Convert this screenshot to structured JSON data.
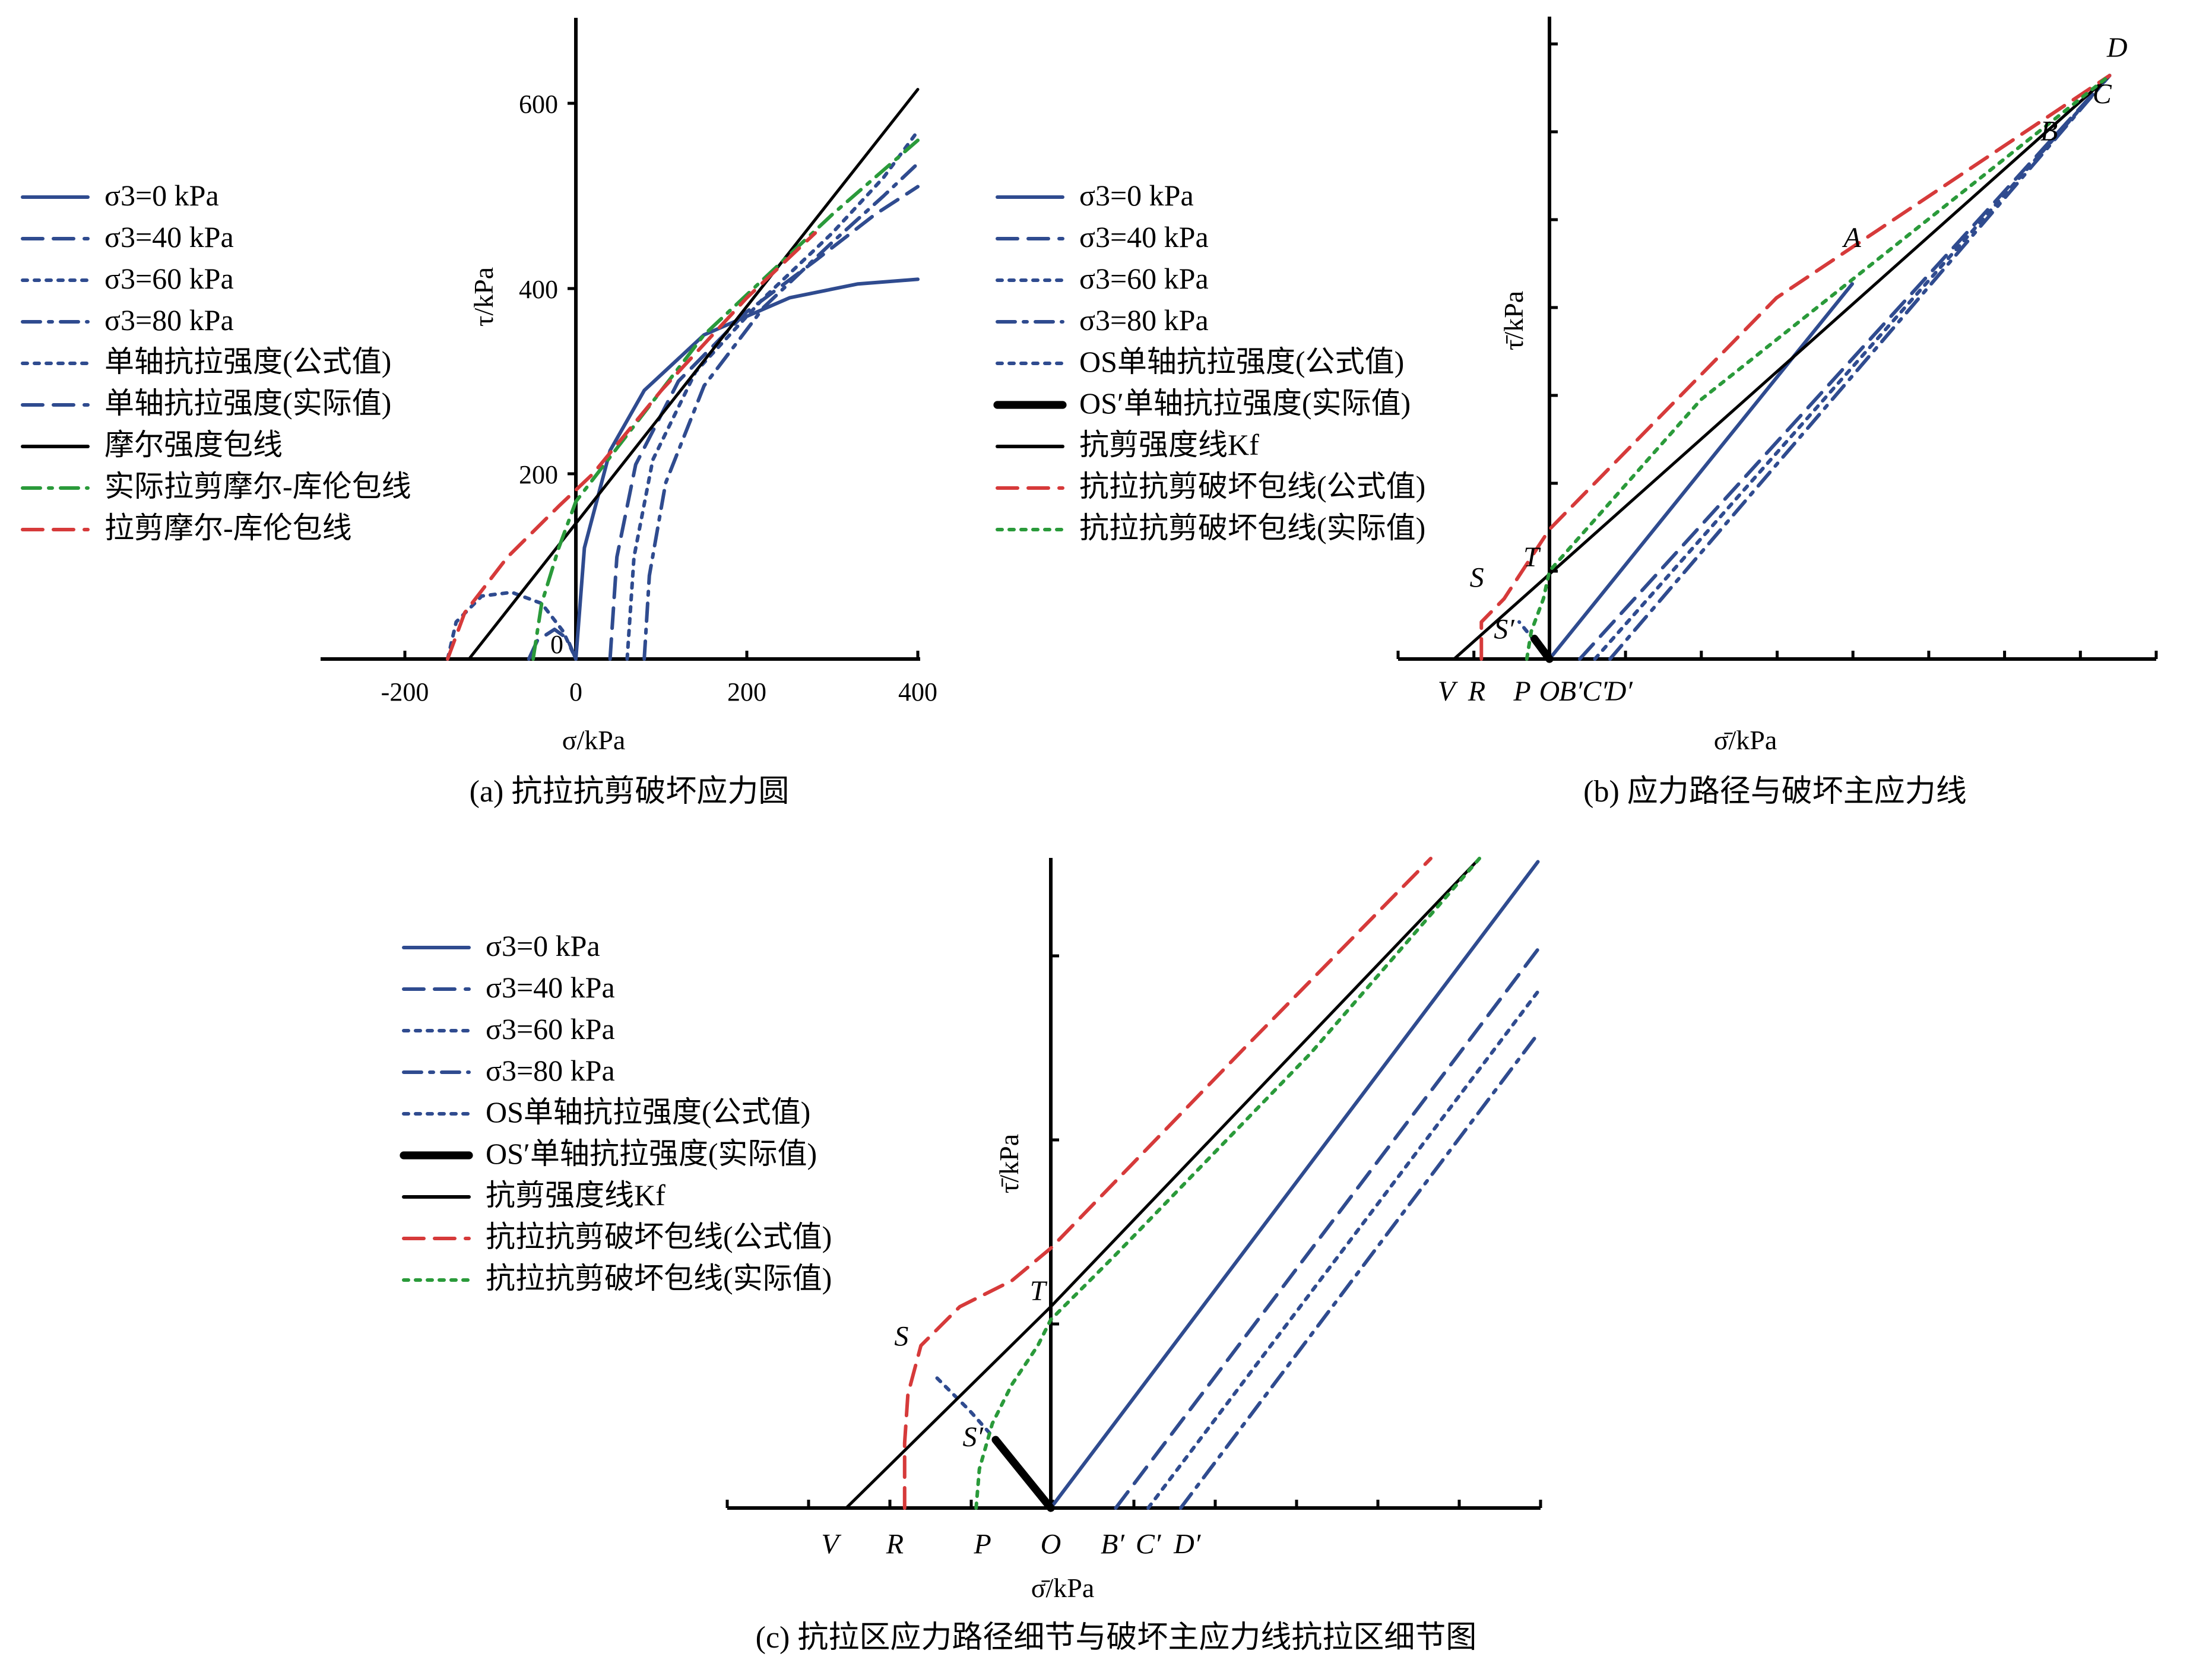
{
  "chart_data": [
    {
      "panel": "a",
      "type": "line",
      "caption": "(a) 抗拉抗剪破坏应力圆",
      "xlabel": "σ/kPa",
      "ylabel": "τ/kPa",
      "xlim": [
        -280,
        400
      ],
      "ylim": [
        0,
        700
      ],
      "xticks": [
        -200,
        0,
        200,
        400
      ],
      "xtick_labels": [
        "-200",
        "0",
        "200",
        "400"
      ],
      "yticks": [
        200,
        400,
        600
      ],
      "ytick_labels": [
        "200",
        "400",
        "600"
      ],
      "origin_label": "0",
      "legend": [
        {
          "label": "σ3=0 kPa",
          "style": "solid",
          "color": "#2f4b8f"
        },
        {
          "label": "σ3=40 kPa",
          "style": "dash",
          "color": "#2f4b8f"
        },
        {
          "label": "σ3=60 kPa",
          "style": "dot",
          "color": "#2f4b8f"
        },
        {
          "label": "σ3=80 kPa",
          "style": "dashdot",
          "color": "#2f4b8f"
        },
        {
          "label": "单轴抗拉强度(公式值)",
          "style": "dot",
          "color": "#2f4b8f"
        },
        {
          "label": "单轴抗拉强度(实际值)",
          "style": "dash",
          "color": "#2f4b8f"
        },
        {
          "label": "摩尔强度包线",
          "style": "solid",
          "color": "#000000"
        },
        {
          "label": "实际拉剪摩尔-库伦包线",
          "style": "dashdot",
          "color": "#2a9a3a"
        },
        {
          "label": "拉剪摩尔-库伦包线",
          "style": "dash",
          "color": "#d63a3a"
        }
      ],
      "series": [
        {
          "name": "σ3=0 kPa",
          "style": "solid",
          "color": "#2f4b8f",
          "x": [
            0,
            10,
            40,
            80,
            150,
            250,
            330,
            400
          ],
          "y": [
            0,
            120,
            225,
            290,
            350,
            390,
            405,
            410
          ]
        },
        {
          "name": "σ3=40 kPa",
          "style": "dash",
          "color": "#2f4b8f",
          "x": [
            40,
            48,
            70,
            120,
            200,
            280,
            350,
            400
          ],
          "y": [
            0,
            110,
            210,
            300,
            375,
            430,
            480,
            510
          ]
        },
        {
          "name": "σ3=60 kPa",
          "style": "dot",
          "color": "#2f4b8f",
          "x": [
            60,
            68,
            90,
            140,
            220,
            300,
            360,
            400
          ],
          "y": [
            0,
            110,
            215,
            310,
            390,
            460,
            520,
            570
          ]
        },
        {
          "name": "σ3=80 kPa",
          "style": "dashdot",
          "color": "#2f4b8f",
          "x": [
            80,
            86,
            105,
            150,
            220,
            300,
            360,
            400
          ],
          "y": [
            0,
            90,
            190,
            295,
            380,
            450,
            500,
            535
          ]
        },
        {
          "name": "单轴抗拉强度(公式值)",
          "style": "dot",
          "color": "#2f4b8f",
          "x": [
            -150,
            -140,
            -110,
            -75,
            -40,
            -15,
            0
          ],
          "y": [
            0,
            40,
            68,
            72,
            60,
            30,
            0
          ]
        },
        {
          "name": "单轴抗拉强度(实际值)",
          "style": "dash",
          "color": "#2f4b8f",
          "x": [
            -55,
            -45,
            -25,
            -10,
            0
          ],
          "y": [
            0,
            20,
            32,
            22,
            0
          ]
        },
        {
          "name": "摩尔强度包线",
          "style": "solid",
          "color": "#000000",
          "x": [
            -125,
            400
          ],
          "y": [
            0,
            615
          ]
        },
        {
          "name": "实际拉剪摩尔-库伦包线",
          "style": "dashdot",
          "color": "#2a9a3a",
          "x": [
            -50,
            -40,
            -20,
            0,
            50,
            150,
            300,
            400
          ],
          "y": [
            0,
            60,
            120,
            170,
            230,
            350,
            480,
            560
          ]
        },
        {
          "name": "拉剪摩尔-库伦包线",
          "style": "dash",
          "color": "#d63a3a",
          "x": [
            -150,
            -130,
            -80,
            -20,
            20,
            100,
            200,
            280
          ],
          "y": [
            0,
            50,
            110,
            165,
            200,
            290,
            390,
            460
          ]
        }
      ]
    },
    {
      "panel": "b",
      "type": "line",
      "caption": "(b) 应力路径与破坏主应力线",
      "xlabel": "σ̄/kPa",
      "ylabel": "τ̄/kPa",
      "xlim": [
        -100,
        400
      ],
      "ylim": [
        0,
        700
      ],
      "point_labels": [
        "A",
        "B",
        "C",
        "D",
        "T",
        "S",
        "S′",
        "V",
        "R",
        "P",
        "O",
        "B′",
        "C′",
        "D′"
      ],
      "legend": [
        {
          "label": "σ3=0 kPa",
          "style": "solid",
          "color": "#2f4b8f"
        },
        {
          "label": "σ3=40 kPa",
          "style": "dash",
          "color": "#2f4b8f"
        },
        {
          "label": "σ3=60 kPa",
          "style": "dot",
          "color": "#2f4b8f"
        },
        {
          "label": "σ3=80 kPa",
          "style": "dashdot",
          "color": "#2f4b8f"
        },
        {
          "label": "OS单轴抗拉强度(公式值)",
          "style": "dot",
          "color": "#2f4b8f"
        },
        {
          "label": "OS′单轴抗拉强度(实际值)",
          "style": "solid-thick",
          "color": "#000000"
        },
        {
          "label": "抗剪强度线Kf",
          "style": "solid",
          "color": "#000000"
        },
        {
          "label": "抗拉抗剪破坏包线(公式值)",
          "style": "dash",
          "color": "#d63a3a"
        },
        {
          "label": "抗拉抗剪破坏包线(实际值)",
          "style": "dot",
          "color": "#2a9a3a"
        }
      ],
      "series": [
        {
          "name": "σ3=0 kPa",
          "style": "solid",
          "color": "#2f4b8f",
          "x": [
            0,
            200
          ],
          "y": [
            0,
            405
          ]
        },
        {
          "name": "σ3=40 kPa",
          "style": "dash",
          "color": "#2f4b8f",
          "x": [
            20,
            370
          ],
          "y": [
            0,
            630
          ]
        },
        {
          "name": "σ3=60 kPa",
          "style": "dot",
          "color": "#2f4b8f",
          "x": [
            30,
            370
          ],
          "y": [
            0,
            630
          ]
        },
        {
          "name": "σ3=80 kPa",
          "style": "dashdot",
          "color": "#2f4b8f",
          "x": [
            40,
            370
          ],
          "y": [
            0,
            630
          ]
        },
        {
          "name": "OS单轴抗拉强度(公式值)",
          "style": "dot",
          "color": "#2f4b8f",
          "x": [
            0,
            -20
          ],
          "y": [
            0,
            40
          ]
        },
        {
          "name": "OS′单轴抗拉强度(实际值)",
          "style": "solid-thick",
          "color": "#000000",
          "x": [
            0,
            -10
          ],
          "y": [
            0,
            22
          ]
        },
        {
          "name": "抗剪强度线Kf",
          "style": "solid",
          "color": "#000000",
          "x": [
            -63,
            370
          ],
          "y": [
            0,
            630
          ]
        },
        {
          "name": "抗拉抗剪破坏包线(公式值)",
          "style": "dash",
          "color": "#d63a3a",
          "x": [
            -45,
            -45,
            -30,
            0,
            150,
            370
          ],
          "y": [
            0,
            40,
            65,
            140,
            390,
            630
          ]
        },
        {
          "name": "抗拉抗剪破坏包线(实际值)",
          "style": "dot",
          "color": "#2a9a3a",
          "x": [
            -15,
            -12,
            -4,
            0,
            100,
            370
          ],
          "y": [
            0,
            30,
            65,
            95,
            280,
            630
          ]
        }
      ]
    },
    {
      "panel": "c",
      "type": "line",
      "caption": "(c) 抗拉区应力路径细节与破坏主应力线抗拉区细节图",
      "xlabel": "σ̄/kPa",
      "ylabel": "τ̄/kPa",
      "xlim": [
        -100,
        150
      ],
      "ylim": [
        0,
        200
      ],
      "point_labels": [
        "T",
        "S",
        "S′",
        "V",
        "R",
        "P",
        "O",
        "B′",
        "C′",
        "D′"
      ],
      "legend": [
        {
          "label": "σ3=0 kPa",
          "style": "solid",
          "color": "#2f4b8f"
        },
        {
          "label": "σ3=40 kPa",
          "style": "dash",
          "color": "#2f4b8f"
        },
        {
          "label": "σ3=60 kPa",
          "style": "dot",
          "color": "#2f4b8f"
        },
        {
          "label": "σ3=80 kPa",
          "style": "dashdot",
          "color": "#2f4b8f"
        },
        {
          "label": "OS单轴抗拉强度(公式值)",
          "style": "dot",
          "color": "#2f4b8f"
        },
        {
          "label": "OS′单轴抗拉强度(实际值)",
          "style": "solid-thick",
          "color": "#000000"
        },
        {
          "label": "抗剪强度线Kf",
          "style": "solid",
          "color": "#000000"
        },
        {
          "label": "抗拉抗剪破坏包线(公式值)",
          "style": "dash",
          "color": "#d63a3a"
        },
        {
          "label": "抗拉抗剪破坏包线(实际值)",
          "style": "dot",
          "color": "#2a9a3a"
        }
      ],
      "series": [
        {
          "name": "σ3=0 kPa",
          "style": "solid",
          "color": "#2f4b8f",
          "x": [
            0,
            150
          ],
          "y": [
            0,
            199
          ]
        },
        {
          "name": "σ3=40 kPa",
          "style": "dash",
          "color": "#2f4b8f",
          "x": [
            20,
            150
          ],
          "y": [
            0,
            172
          ]
        },
        {
          "name": "σ3=60 kPa",
          "style": "dot",
          "color": "#2f4b8f",
          "x": [
            30,
            150
          ],
          "y": [
            0,
            159
          ]
        },
        {
          "name": "σ3=80 kPa",
          "style": "dashdot",
          "color": "#2f4b8f",
          "x": [
            40,
            150
          ],
          "y": [
            0,
            146
          ]
        },
        {
          "name": "OS单轴抗拉强度(公式值)",
          "style": "dot",
          "color": "#2f4b8f",
          "x": [
            -35,
            -25,
            -17
          ],
          "y": [
            40,
            30,
            21
          ]
        },
        {
          "name": "OS′单轴抗拉强度(实际值)",
          "style": "solid-thick",
          "color": "#000000",
          "x": [
            -17,
            0
          ],
          "y": [
            21,
            0
          ]
        },
        {
          "name": "抗剪强度线Kf",
          "style": "solid",
          "color": "#000000",
          "x": [
            -63,
            0,
            132
          ],
          "y": [
            0,
            62,
            200
          ]
        },
        {
          "name": "抗拉抗剪破坏包线(公式值)",
          "style": "dash",
          "color": "#d63a3a",
          "x": [
            -45,
            -45,
            -44,
            -40,
            -28,
            -12,
            0,
            60,
            117
          ],
          "y": [
            0,
            20,
            35,
            50,
            62,
            70,
            80,
            142,
            200
          ]
        },
        {
          "name": "抗拉抗剪破坏包线(实际值)",
          "style": "dot",
          "color": "#2a9a3a",
          "x": [
            -23,
            -22,
            -18,
            -12,
            -4,
            0,
            20,
            80,
            132
          ],
          "y": [
            0,
            12,
            26,
            38,
            50,
            58,
            78,
            140,
            200
          ]
        }
      ]
    }
  ]
}
